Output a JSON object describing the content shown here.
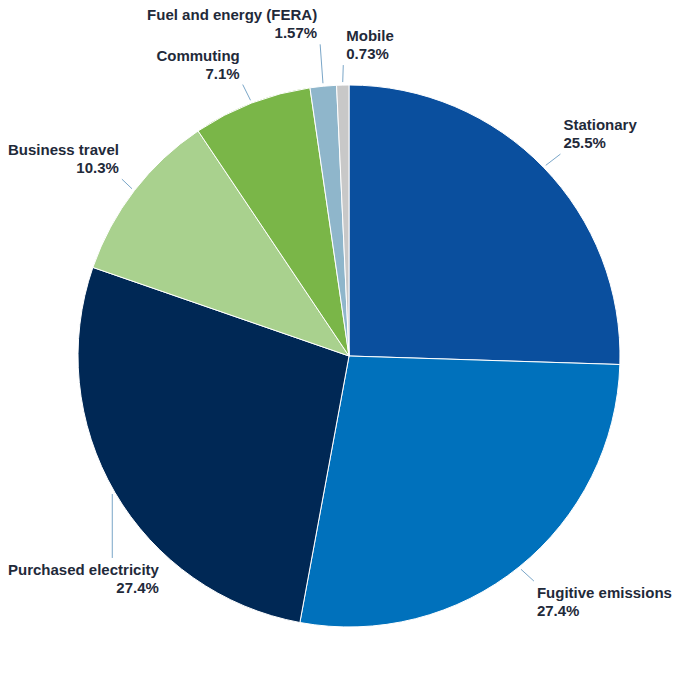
{
  "chart_data": {
    "type": "pie",
    "categories": [
      "Stationary",
      "Fugitive emissions",
      "Purchased electricity",
      "Business travel",
      "Commuting",
      "Fuel and energy (FERA)",
      "Mobile"
    ],
    "values": [
      25.5,
      27.4,
      27.4,
      10.3,
      7.1,
      1.57,
      0.73
    ],
    "value_labels": [
      "25.5%",
      "27.4%",
      "27.4%",
      "10.3%",
      "7.1%",
      "1.57%",
      "0.73%"
    ],
    "colors": [
      "#0a4f9e",
      "#0071bc",
      "#002855",
      "#a9d18e",
      "#7ab648",
      "#8fb6cb",
      "#c8c8c8"
    ],
    "data_labels": true
  }
}
